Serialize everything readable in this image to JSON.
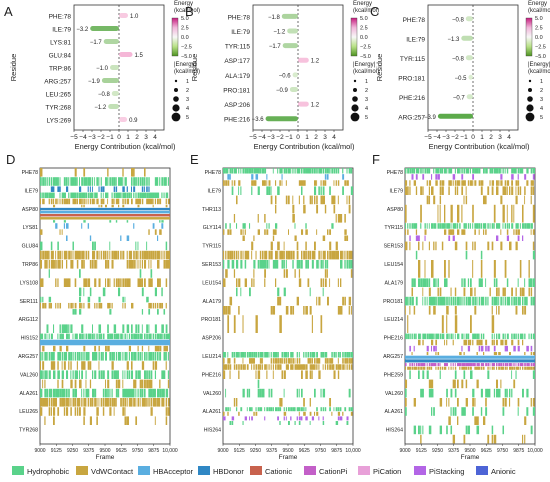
{
  "colors": {
    "Hydrophobic": "#5ad28a",
    "VdWContact": "#c8a640",
    "HBAcceptor": "#5aaee0",
    "HBDonor": "#2f87c4",
    "Cationic": "#c8624d",
    "CationPi": "#c35fc8",
    "PiCation": "#e8a0d8",
    "PiStacking": "#b365e6",
    "Anionic": "#4d64d6"
  },
  "chart_data": [
    {
      "panel": "A",
      "type": "bar",
      "ylabel": "Residue",
      "xlabel": "Energy Contribution (kcal/mol)",
      "xticks": [
        "−5",
        "−4",
        "−3",
        "−2",
        "−1",
        "0",
        "1",
        "2",
        "3",
        "4"
      ],
      "xlim": [
        -5,
        5
      ],
      "categories": [
        "PHE:78",
        "ILE:79",
        "LYS:81",
        "GLU:84",
        "TRP:86",
        "ARG:257",
        "LEU:265",
        "TYR:268",
        "LYS:269"
      ],
      "values": [
        1.0,
        -3.2,
        -1.7,
        1.5,
        -1.0,
        -1.9,
        -0.8,
        -1.2,
        0.9
      ],
      "labels": [
        "1.0",
        "−3.2",
        "−1.7",
        "1.5",
        "−1.0",
        "−1.9",
        "−0.8",
        "−1.2",
        "0.9"
      ],
      "colorbar_title": "Energy\n(kcal/mol)",
      "colorbar_ticks": [
        "5.0",
        "2.5",
        "0.0",
        "−2.5",
        "−5.0"
      ],
      "size_legend_title": "|Energy|\n(kcal/mol)",
      "size_legend": [
        "1",
        "2",
        "3",
        "4",
        "5"
      ]
    },
    {
      "panel": "B",
      "type": "bar",
      "ylabel": "Residue",
      "xlabel": "Energy Contribution (kcal/mol)",
      "xticks": [
        "−5",
        "−4",
        "−3",
        "−2",
        "−1",
        "0",
        "1",
        "2",
        "3",
        "4"
      ],
      "xlim": [
        -5,
        5
      ],
      "categories": [
        "PHE:78",
        "ILE:79",
        "TYR:115",
        "ASP:177",
        "ALA:179",
        "PRO:181",
        "ASP:206",
        "PHE:216"
      ],
      "values": [
        -1.8,
        -1.2,
        -1.7,
        1.2,
        -0.6,
        -0.9,
        1.2,
        -3.6
      ],
      "labels": [
        "−1.8",
        "−1.2",
        "−1.7",
        "1.2",
        "−0.6",
        "−0.9",
        "1.2",
        "−3.6"
      ],
      "colorbar_title": "Energy\n(kcal/mol)",
      "colorbar_ticks": [
        "5.0",
        "2.5",
        "0.0",
        "−2.5",
        "−5.0"
      ],
      "size_legend_title": "|Energy|\n(kcal/mol)",
      "size_legend": [
        "1",
        "2",
        "3",
        "4",
        "5"
      ]
    },
    {
      "panel": "C",
      "type": "bar",
      "ylabel": "Residue",
      "xlabel": "Energy Contribution (kcal/mol)",
      "xticks": [
        "−5",
        "−4",
        "−3",
        "−2",
        "−1",
        "0",
        "1",
        "2",
        "3",
        "4"
      ],
      "xlim": [
        -5,
        5
      ],
      "categories": [
        "PHE:78",
        "ILE:79",
        "TYR:115",
        "PRO:181",
        "PHE:216",
        "ARG:257"
      ],
      "values": [
        -0.8,
        -1.3,
        -0.8,
        -0.5,
        -0.7,
        -3.9
      ],
      "labels": [
        "−0.8",
        "−1.3",
        "−0.8",
        "−0.5",
        "−0.7",
        "−3.9"
      ],
      "colorbar_title": "Energy\n(kcal/mol)",
      "colorbar_ticks": [
        "5.0",
        "2.5",
        "0.0",
        "−2.5",
        "−5.0"
      ],
      "size_legend_title": "|Energy|\n(kcal/mol)",
      "size_legend": [
        "1",
        "2",
        "3",
        "4",
        "5"
      ]
    },
    {
      "panel": "D",
      "type": "heatmap",
      "xlabel": "Frame",
      "xlim": [
        9000,
        10000
      ],
      "xticks": [
        "9000",
        "9125",
        "9250",
        "9375",
        "9500",
        "9625",
        "9750",
        "9875",
        "10,000"
      ],
      "residues": [
        "PHE78",
        "ILE79",
        "ASP80",
        "LYS81",
        "GLU84",
        "TRP86",
        "LYS108",
        "SER111",
        "ARG112",
        "HIS152",
        "ARG257",
        "VAL260",
        "ALA261",
        "LEU265",
        "TYR268"
      ],
      "rows": [
        {
          "r": 0,
          "t": "VdWContact",
          "d": 0.2
        },
        {
          "r": 0,
          "t": "Hydrophobic",
          "d": 0.95
        },
        {
          "r": 1,
          "t": "HBDonor",
          "d": 0.4
        },
        {
          "r": 1,
          "t": "Hydrophobic",
          "d": 0.9
        },
        {
          "r": 1,
          "t": "VdWContact",
          "d": 0.85
        },
        {
          "r": 2,
          "t": "VdWContact",
          "d": 0.25
        },
        {
          "r": 2,
          "t": "HBDonor",
          "d": 1
        },
        {
          "r": 2,
          "t": "HBAcceptor",
          "d": 1
        },
        {
          "r": 2,
          "t": "Cationic",
          "d": 1
        },
        {
          "r": 2,
          "t": "VdWContact",
          "d": 1
        },
        {
          "r": 2,
          "t": "Hydrophobic",
          "d": 0.1
        },
        {
          "r": 3,
          "t": "HBAcceptor",
          "d": 0.12
        },
        {
          "r": 3,
          "t": "VdWContact",
          "d": 0.1
        },
        {
          "r": 3,
          "t": "HBAcceptor",
          "d": 0.05
        },
        {
          "r": 4,
          "t": "Hydrophobic",
          "d": 0.15
        },
        {
          "r": 4,
          "t": "VdWContact",
          "d": 0.95
        },
        {
          "r": 5,
          "t": "VdWContact",
          "d": 0.7
        },
        {
          "r": 5,
          "t": "Hydrophobic",
          "d": 0.05
        },
        {
          "r": 6,
          "t": "VdWContact",
          "d": 0.6
        },
        {
          "r": 6,
          "t": "Hydrophobic",
          "d": 0.1
        },
        {
          "r": 7,
          "t": "Hydrophobic",
          "d": 0.15
        },
        {
          "r": 7,
          "t": "VdWContact",
          "d": 0.55
        },
        {
          "r": 7,
          "t": "Hydrophobic",
          "d": 0.1
        },
        {
          "r": 8,
          "t": "VdWContact",
          "d": 0.05
        },
        {
          "r": 8,
          "t": "Hydrophobic",
          "d": 0.5
        },
        {
          "r": 9,
          "t": "Hydrophobic",
          "d": 0.9
        },
        {
          "r": 9,
          "t": "HBAcceptor",
          "d": 1
        },
        {
          "r": 9,
          "t": "VdWContact",
          "d": 0.3
        },
        {
          "r": 10,
          "t": "Hydrophobic",
          "d": 0.9
        },
        {
          "r": 10,
          "t": "VdWContact",
          "d": 0.4
        },
        {
          "r": 11,
          "t": "Hydrophobic",
          "d": 0.6
        },
        {
          "r": 11,
          "t": "VdWContact",
          "d": 0.35
        },
        {
          "r": 12,
          "t": "Hydrophobic",
          "d": 0.85
        },
        {
          "r": 12,
          "t": "VdWContact",
          "d": 0.9
        },
        {
          "r": 13,
          "t": "VdWContact",
          "d": 0.3
        },
        {
          "r": 13,
          "t": "VdWContact",
          "d": 0.2
        }
      ]
    },
    {
      "panel": "E",
      "type": "heatmap",
      "xlabel": "Frame",
      "xlim": [
        9000,
        10000
      ],
      "xticks": [
        "9000",
        "9125",
        "9250",
        "9375",
        "9500",
        "9625",
        "9750",
        "9875",
        "10,000"
      ],
      "residues": [
        "PHE78",
        "ILE79",
        "THR113",
        "GLY114",
        "TYR115",
        "SER153",
        "LEU154",
        "ALA179",
        "PRO181",
        "ASP206",
        "LEU214",
        "PHE216",
        "VAL260",
        "ALA261",
        "HIS264"
      ],
      "rows": [
        {
          "r": 0,
          "t": "Hydrophobic",
          "d": 0.9
        },
        {
          "r": 0,
          "t": "HBAcceptor",
          "d": 0.15
        },
        {
          "r": 0,
          "t": "VdWContact",
          "d": 0.5
        },
        {
          "r": 1,
          "t": "Hydrophobic",
          "d": 0.3
        },
        {
          "r": 1,
          "t": "VdWContact",
          "d": 0.25
        },
        {
          "r": 2,
          "t": "VdWContact",
          "d": 0.1
        },
        {
          "r": 2,
          "t": "VdWContact",
          "d": 0.1
        },
        {
          "r": 3,
          "t": "Hydrophobic",
          "d": 0.2
        },
        {
          "r": 3,
          "t": "VdWContact",
          "d": 0.35
        },
        {
          "r": 3,
          "t": "VdWContact",
          "d": 0.1
        },
        {
          "r": 4,
          "t": "VdWContact",
          "d": 0.2
        },
        {
          "r": 4,
          "t": "VdWContact",
          "d": 0.9
        },
        {
          "r": 5,
          "t": "Hydrophobic",
          "d": 0.6
        },
        {
          "r": 5,
          "t": "VdWContact",
          "d": 0.15
        },
        {
          "r": 6,
          "t": "VdWContact",
          "d": 0.3
        },
        {
          "r": 6,
          "t": "Hydrophobic",
          "d": 0.2
        },
        {
          "r": 7,
          "t": "VdWContact",
          "d": 0.25
        },
        {
          "r": 7,
          "t": "VdWContact",
          "d": 0.2
        },
        {
          "r": 8,
          "t": "VdWContact",
          "d": 0.1
        },
        {
          "r": 10,
          "t": "Hydrophobic",
          "d": 0.9
        },
        {
          "r": 10,
          "t": "VdWContact",
          "d": 0.6
        },
        {
          "r": 10,
          "t": "VdWContact",
          "d": 0.9
        },
        {
          "r": 11,
          "t": "VdWContact",
          "d": 0.2
        },
        {
          "r": 11,
          "t": "Hydrophobic",
          "d": 0.1
        },
        {
          "r": 12,
          "t": "Hydrophobic",
          "d": 0.3
        },
        {
          "r": 12,
          "t": "VdWContact",
          "d": 0.15
        },
        {
          "r": 13,
          "t": "Hydrophobic",
          "d": 0.6
        },
        {
          "r": 13,
          "t": "VdWContact",
          "d": 0.4
        },
        {
          "r": 13,
          "t": "PiStacking",
          "d": 0.3
        },
        {
          "r": 13,
          "t": "Hydrophobic",
          "d": 0.2
        }
      ]
    },
    {
      "panel": "F",
      "type": "heatmap",
      "xlabel": "Frame",
      "xlim": [
        9000,
        10000
      ],
      "xticks": [
        "9000",
        "9125",
        "9250",
        "9375",
        "9500",
        "9625",
        "9750",
        "9875",
        "10,000"
      ],
      "residues": [
        "PHE78",
        "ILE79",
        "ASP80",
        "TYR115",
        "SER153",
        "LEU154",
        "ALA179",
        "PRO181",
        "LEU214",
        "PHE216",
        "ARG257",
        "PHE259",
        "VAL260",
        "ALA261",
        "HIS264"
      ],
      "rows": [
        {
          "r": 0,
          "t": "Hydrophobic",
          "d": 0.9
        },
        {
          "r": 0,
          "t": "PiStacking",
          "d": 0.3
        },
        {
          "r": 0,
          "t": "VdWContact",
          "d": 0.6
        },
        {
          "r": 1,
          "t": "VdWContact",
          "d": 0.5
        },
        {
          "r": 1,
          "t": "VdWContact",
          "d": 0.2
        },
        {
          "r": 2,
          "t": "VdWContact",
          "d": 0.2
        },
        {
          "r": 3,
          "t": "Hydrophobic",
          "d": 0.9
        },
        {
          "r": 3,
          "t": "VdWContact",
          "d": 0.4
        },
        {
          "r": 3,
          "t": "PiStacking",
          "d": 0.2
        },
        {
          "r": 4,
          "t": "VdWContact",
          "d": 0.3
        },
        {
          "r": 4,
          "t": "Hydrophobic",
          "d": 0.1
        },
        {
          "r": 5,
          "t": "VdWContact",
          "d": 0.2
        },
        {
          "r": 6,
          "t": "Hydrophobic",
          "d": 0.5
        },
        {
          "r": 6,
          "t": "VdWContact",
          "d": 0.3
        },
        {
          "r": 7,
          "t": "Hydrophobic",
          "d": 0.85
        },
        {
          "r": 7,
          "t": "VdWContact",
          "d": 0.3
        },
        {
          "r": 8,
          "t": "VdWContact",
          "d": 0.15
        },
        {
          "r": 9,
          "t": "Hydrophobic",
          "d": 0.9
        },
        {
          "r": 9,
          "t": "VdWContact",
          "d": 0.4
        },
        {
          "r": 9,
          "t": "PiStacking",
          "d": 0.2
        },
        {
          "r": 10,
          "t": "VdWContact",
          "d": 0.2
        },
        {
          "r": 10,
          "t": "HBAcceptor",
          "d": 1
        },
        {
          "r": 10,
          "t": "HBDonor",
          "d": 1
        },
        {
          "r": 10,
          "t": "CationPi",
          "d": 0.95
        },
        {
          "r": 10,
          "t": "VdWContact",
          "d": 0.9
        },
        {
          "r": 11,
          "t": "Hydrophobic",
          "d": 0.15
        },
        {
          "r": 11,
          "t": "VdWContact",
          "d": 0.15
        },
        {
          "r": 12,
          "t": "Hydrophobic",
          "d": 0.35
        },
        {
          "r": 12,
          "t": "VdWContact",
          "d": 0.2
        },
        {
          "r": 13,
          "t": "Hydrophobic",
          "d": 0.3
        },
        {
          "r": 13,
          "t": "VdWContact",
          "d": 0.15
        },
        {
          "r": 14,
          "t": "Hydrophobic",
          "d": 0.2
        },
        {
          "r": 14,
          "t": "VdWContact",
          "d": 0.1
        }
      ]
    }
  ],
  "legend": [
    "Hydrophobic",
    "VdWContact",
    "HBAcceptor",
    "HBDonor",
    "Cationic",
    "CationPi",
    "PiCation",
    "PiStacking",
    "Anionic"
  ],
  "panel_letters": [
    "A",
    "B",
    "C",
    "D",
    "E",
    "F"
  ]
}
